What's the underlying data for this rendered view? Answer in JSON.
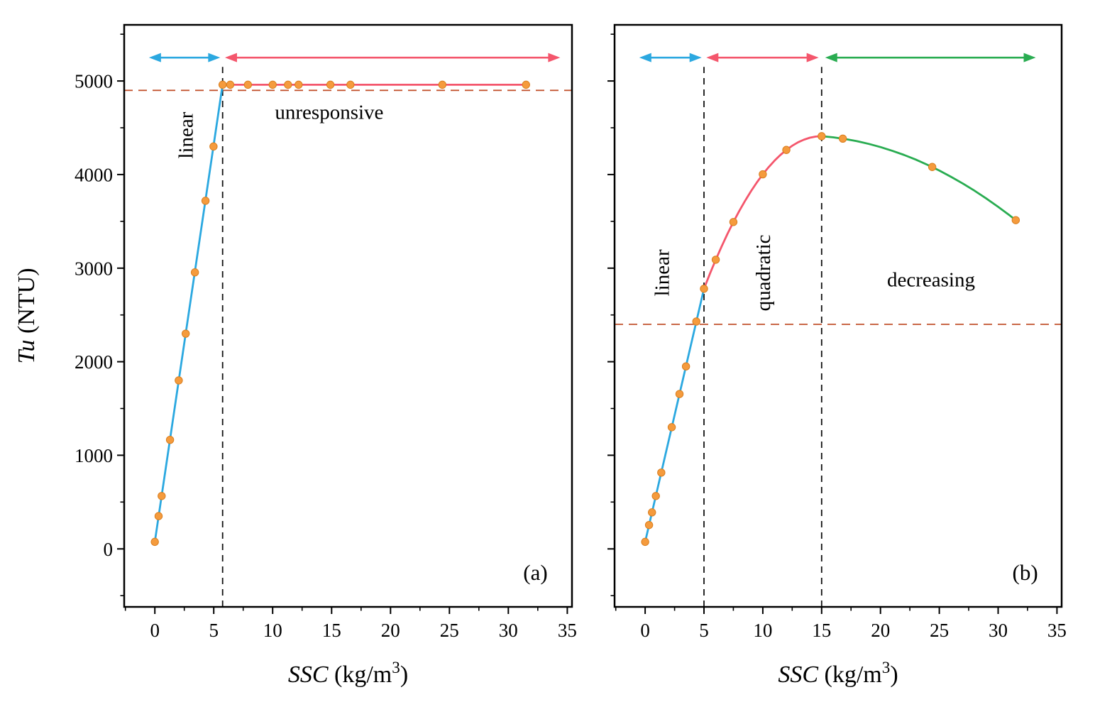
{
  "figure": {
    "background": "#ffffff",
    "text_color": "#000000",
    "ylabel_parts": {
      "italic": "Tu",
      "normal": " (NTU)"
    },
    "xlabel_parts": {
      "italic": "SSC",
      "normal": " (kg/m",
      "sup": "3",
      "close": ")"
    }
  },
  "chart_data": [
    {
      "type": "line",
      "panel_label": "(a)",
      "panel_label_pos": {
        "x": 32.3,
        "y": -330
      },
      "xlabel": "SSC (kg/m³)",
      "ylabel": "Tu (NTU)",
      "xlim": [
        -2.6,
        35.4
      ],
      "ylim": [
        -620,
        5600
      ],
      "xticks": [
        0,
        5,
        10,
        15,
        20,
        25,
        30,
        35
      ],
      "yticks": [
        0,
        1000,
        2000,
        3000,
        4000,
        5000
      ],
      "x_minor_step": 2.5,
      "y_minor_step": 500,
      "show_y_tick_labels": true,
      "series": [
        {
          "name": "linear-fit",
          "color": "#2BA8E0",
          "x": [
            0,
            5.75
          ],
          "y": [
            75,
            4960
          ]
        },
        {
          "name": "unresponsive-fit",
          "color": "#F4566C",
          "x": [
            5.75,
            31.5
          ],
          "y": [
            4960,
            4960
          ]
        }
      ],
      "points": {
        "color": "#F59B3D",
        "edge": "#D87E1F",
        "xy": [
          [
            0,
            75
          ],
          [
            0.32,
            350
          ],
          [
            0.58,
            565
          ],
          [
            1.29,
            1165
          ],
          [
            2.03,
            1800
          ],
          [
            2.62,
            2300
          ],
          [
            3.4,
            2955
          ],
          [
            4.3,
            3720
          ],
          [
            4.98,
            4300
          ],
          [
            5.75,
            4960
          ],
          [
            6.4,
            4960
          ],
          [
            7.9,
            4960
          ],
          [
            10,
            4960
          ],
          [
            11.3,
            4960
          ],
          [
            12.2,
            4960
          ],
          [
            14.9,
            4960
          ],
          [
            16.6,
            4960
          ],
          [
            24.4,
            4960
          ],
          [
            31.5,
            4960
          ]
        ]
      },
      "vlines": [
        {
          "x": 5.75,
          "y1": -620,
          "y2": 5150,
          "color": "#111111"
        }
      ],
      "hlines": [
        {
          "y": 4900,
          "color": "#C2532F"
        }
      ],
      "arrows": [
        {
          "x1": -0.5,
          "x2": 5.55,
          "y": 5250,
          "color": "#2BA8E0"
        },
        {
          "x1": 5.95,
          "x2": 34.4,
          "y": 5250,
          "color": "#F4566C"
        }
      ],
      "annotations": [
        {
          "text": "linear",
          "x": 2.6,
          "y": 4420,
          "rotate": -90
        },
        {
          "text": "unresponsive",
          "x": 14.8,
          "y": 4670,
          "rotate": 0
        }
      ]
    },
    {
      "type": "line",
      "panel_label": "(b)",
      "panel_label_pos": {
        "x": 32.3,
        "y": -330
      },
      "xlabel": "SSC (kg/m³)",
      "ylabel": "Tu (NTU)",
      "xlim": [
        -2.6,
        35.4
      ],
      "ylim": [
        -620,
        5600
      ],
      "xticks": [
        0,
        5,
        10,
        15,
        20,
        25,
        30,
        35
      ],
      "yticks": [
        0,
        1000,
        2000,
        3000,
        4000,
        5000
      ],
      "x_minor_step": 2.5,
      "y_minor_step": 500,
      "show_y_tick_labels": false,
      "series": [
        {
          "name": "linear-fit",
          "color": "#2BA8E0",
          "x": [
            0,
            5
          ],
          "y": [
            75,
            2780
          ]
        },
        {
          "name": "quadratic-fit",
          "color": "#F4566C",
          "x": [
            5,
            5.5,
            6,
            6.5,
            7,
            7.5,
            8,
            8.5,
            9,
            9.5,
            10,
            10.5,
            11,
            11.5,
            12,
            12.5,
            13,
            13.5,
            14,
            14.5,
            15
          ],
          "y": [
            2780,
            2939,
            3090,
            3232,
            3367,
            3493,
            3611,
            3721,
            3823,
            3917,
            4003,
            4080,
            4149,
            4210,
            4263,
            4308,
            4345,
            4373,
            4394,
            4406,
            4410
          ]
        },
        {
          "name": "decreasing-fit",
          "color": "#29AC51",
          "x": [
            15,
            16,
            17,
            18,
            19,
            20,
            21,
            22,
            23,
            24,
            25,
            26,
            27,
            28,
            29,
            30,
            31,
            31.5
          ],
          "y": [
            4410,
            4398,
            4380,
            4357,
            4328,
            4294,
            4254,
            4210,
            4160,
            4104,
            4043,
            3976,
            3904,
            3827,
            3744,
            3655,
            3562,
            3513
          ]
        }
      ],
      "points": {
        "color": "#F59B3D",
        "edge": "#D87E1F",
        "xy": [
          [
            0,
            75
          ],
          [
            0.33,
            255
          ],
          [
            0.58,
            390
          ],
          [
            0.91,
            565
          ],
          [
            1.37,
            815
          ],
          [
            2.26,
            1300
          ],
          [
            2.92,
            1655
          ],
          [
            3.47,
            1950
          ],
          [
            4.35,
            2430
          ],
          [
            5,
            2780
          ],
          [
            6,
            3090
          ],
          [
            7.5,
            3493
          ],
          [
            10,
            4003
          ],
          [
            12,
            4263
          ],
          [
            15,
            4410
          ],
          [
            16.8,
            4384
          ],
          [
            24.4,
            4081
          ],
          [
            31.5,
            3513
          ]
        ]
      },
      "vlines": [
        {
          "x": 5,
          "y1": -620,
          "y2": 5150,
          "color": "#111111"
        },
        {
          "x": 15,
          "y1": -620,
          "y2": 5150,
          "color": "#111111"
        }
      ],
      "hlines": [
        {
          "y": 2400,
          "color": "#C2532F"
        }
      ],
      "arrows": [
        {
          "x1": -0.5,
          "x2": 4.8,
          "y": 5250,
          "color": "#2BA8E0"
        },
        {
          "x1": 5.2,
          "x2": 14.75,
          "y": 5250,
          "color": "#F4566C"
        },
        {
          "x1": 15.3,
          "x2": 33.2,
          "y": 5250,
          "color": "#29AC51"
        }
      ],
      "annotations": [
        {
          "text": "linear",
          "x": 1.4,
          "y": 2950,
          "rotate": -90
        },
        {
          "text": "quadratic",
          "x": 10.0,
          "y": 2950,
          "rotate": -90
        },
        {
          "text": "decreasing",
          "x": 24.3,
          "y": 2880,
          "rotate": 0
        }
      ]
    }
  ]
}
